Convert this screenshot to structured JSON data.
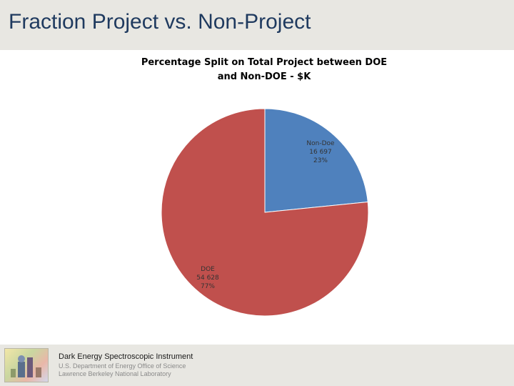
{
  "slide": {
    "title": "Fraction Project vs. Non-Project"
  },
  "footer": {
    "line1": "Dark Energy Spectroscopic Instrument",
    "line2": "U.S. Department of Energy Office of Science",
    "line3": "Lawrence Berkeley National Laboratory",
    "logo_icon": "lab-logo-icon"
  },
  "chart_data": {
    "type": "pie",
    "title": "Percentage Split on Total Project between DOE and Non-DOE - $K",
    "title_lines": [
      "Percentage Split on Total Project between DOE",
      "and Non-DOE - $K"
    ],
    "slices": [
      {
        "name": "Non-Doe",
        "value_text": "16 697",
        "value": 16697,
        "percent_text": "23%",
        "color": "#4f81bd"
      },
      {
        "name": "DOE",
        "value_text": "54 628",
        "value": 54628,
        "percent_text": "77%",
        "color": "#c0504d"
      }
    ],
    "start_angle_deg": 0,
    "direction": "clockwise"
  }
}
